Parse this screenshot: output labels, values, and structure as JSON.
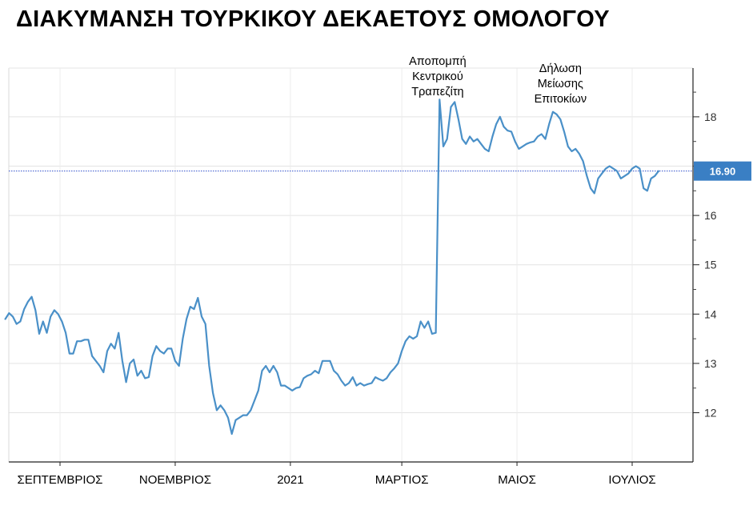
{
  "title": "ΔΙΑΚΥΜΑΝΣΗ ΤΟΥΡΚΙΚΟΥ ΔΕΚΑΕΤΟΥΣ ΟΜΟΛΟΓΟΥ",
  "colors": {
    "line": "#4a90c8",
    "last_badge": "#3a7fc4",
    "reference_line": "#2f4fcc"
  },
  "chart_data": {
    "type": "line",
    "title": "ΔΙΑΚΥΜΑΝΣΗ ΤΟΥΡΚΙΚΟΥ ΔΕΚΑΕΤΟΥΣ ΟΜΟΛΟΓΟΥ",
    "xlabel": "",
    "ylabel": "",
    "ylim": [
      11,
      19
    ],
    "y_ticks": [
      12,
      13,
      14,
      15,
      16,
      18
    ],
    "y_tick_labels": [
      "12",
      "13",
      "14",
      "15",
      "16",
      "18"
    ],
    "x_tick_labels": [
      "ΣΕΠΤΕΜΒΡΙΟΣ",
      "ΝΟΕΜΒΡΙΟΣ",
      "2021",
      "ΜΑΡΤΙΟΣ",
      "ΜΑΙΟΣ",
      "ΙΟΥΛΙΟΣ"
    ],
    "x_tick_dates": [
      "2020-09-01",
      "2020-11-01",
      "2021-01-01",
      "2021-03-01",
      "2021-05-01",
      "2021-07-01"
    ],
    "grid": true,
    "last_value": 16.9,
    "last_value_label": "16.90",
    "annotations": [
      {
        "lines": [
          "Αποπομπή",
          "Κεντρικού",
          "Τραπεζίτη"
        ],
        "date": "2021-03-20"
      },
      {
        "lines": [
          "Δήλωση",
          "Μείωσης",
          "Επιτοκίων"
        ],
        "date": "2021-05-24"
      }
    ],
    "series": [
      {
        "points": [
          [
            "2020-08-03",
            13.9
          ],
          [
            "2020-08-05",
            14.02
          ],
          [
            "2020-08-07",
            13.95
          ],
          [
            "2020-08-09",
            13.8
          ],
          [
            "2020-08-11",
            13.85
          ],
          [
            "2020-08-13",
            14.1
          ],
          [
            "2020-08-15",
            14.25
          ],
          [
            "2020-08-17",
            14.35
          ],
          [
            "2020-08-19",
            14.08
          ],
          [
            "2020-08-21",
            13.6
          ],
          [
            "2020-08-23",
            13.85
          ],
          [
            "2020-08-25",
            13.62
          ],
          [
            "2020-08-27",
            13.95
          ],
          [
            "2020-08-29",
            14.08
          ],
          [
            "2020-08-31",
            14.0
          ],
          [
            "2020-09-02",
            13.85
          ],
          [
            "2020-09-04",
            13.62
          ],
          [
            "2020-09-06",
            13.2
          ],
          [
            "2020-09-08",
            13.2
          ],
          [
            "2020-09-10",
            13.45
          ],
          [
            "2020-09-12",
            13.45
          ],
          [
            "2020-09-14",
            13.48
          ],
          [
            "2020-09-16",
            13.48
          ],
          [
            "2020-09-18",
            13.15
          ],
          [
            "2020-09-20",
            13.05
          ],
          [
            "2020-09-22",
            12.95
          ],
          [
            "2020-09-24",
            12.82
          ],
          [
            "2020-09-26",
            13.25
          ],
          [
            "2020-09-28",
            13.4
          ],
          [
            "2020-09-30",
            13.3
          ],
          [
            "2020-10-02",
            13.62
          ],
          [
            "2020-10-04",
            13.05
          ],
          [
            "2020-10-06",
            12.62
          ],
          [
            "2020-10-08",
            13.0
          ],
          [
            "2020-10-10",
            13.08
          ],
          [
            "2020-10-12",
            12.75
          ],
          [
            "2020-10-14",
            12.85
          ],
          [
            "2020-10-16",
            12.7
          ],
          [
            "2020-10-18",
            12.72
          ],
          [
            "2020-10-20",
            13.15
          ],
          [
            "2020-10-22",
            13.35
          ],
          [
            "2020-10-24",
            13.25
          ],
          [
            "2020-10-26",
            13.2
          ],
          [
            "2020-10-28",
            13.3
          ],
          [
            "2020-10-30",
            13.3
          ],
          [
            "2020-11-01",
            13.05
          ],
          [
            "2020-11-03",
            12.95
          ],
          [
            "2020-11-05",
            13.5
          ],
          [
            "2020-11-07",
            13.9
          ],
          [
            "2020-11-09",
            14.15
          ],
          [
            "2020-11-11",
            14.1
          ],
          [
            "2020-11-13",
            14.33
          ],
          [
            "2020-11-15",
            13.95
          ],
          [
            "2020-11-17",
            13.8
          ],
          [
            "2020-11-19",
            12.95
          ],
          [
            "2020-11-21",
            12.4
          ],
          [
            "2020-11-23",
            12.05
          ],
          [
            "2020-11-25",
            12.15
          ],
          [
            "2020-11-27",
            12.05
          ],
          [
            "2020-11-29",
            11.9
          ],
          [
            "2020-12-01",
            11.57
          ],
          [
            "2020-12-03",
            11.85
          ],
          [
            "2020-12-05",
            11.9
          ],
          [
            "2020-12-07",
            11.95
          ],
          [
            "2020-12-09",
            11.95
          ],
          [
            "2020-12-11",
            12.05
          ],
          [
            "2020-12-13",
            12.25
          ],
          [
            "2020-12-15",
            12.45
          ],
          [
            "2020-12-17",
            12.85
          ],
          [
            "2020-12-19",
            12.95
          ],
          [
            "2020-12-21",
            12.82
          ],
          [
            "2020-12-23",
            12.95
          ],
          [
            "2020-12-25",
            12.82
          ],
          [
            "2020-12-27",
            12.55
          ],
          [
            "2020-12-29",
            12.55
          ],
          [
            "2020-12-31",
            12.5
          ],
          [
            "2021-01-02",
            12.45
          ],
          [
            "2021-01-04",
            12.5
          ],
          [
            "2021-01-06",
            12.52
          ],
          [
            "2021-01-08",
            12.7
          ],
          [
            "2021-01-10",
            12.75
          ],
          [
            "2021-01-12",
            12.78
          ],
          [
            "2021-01-14",
            12.85
          ],
          [
            "2021-01-16",
            12.8
          ],
          [
            "2021-01-18",
            13.05
          ],
          [
            "2021-01-20",
            13.05
          ],
          [
            "2021-01-22",
            13.05
          ],
          [
            "2021-01-24",
            12.85
          ],
          [
            "2021-01-26",
            12.78
          ],
          [
            "2021-01-28",
            12.65
          ],
          [
            "2021-01-30",
            12.55
          ],
          [
            "2021-02-01",
            12.6
          ],
          [
            "2021-02-03",
            12.72
          ],
          [
            "2021-02-05",
            12.55
          ],
          [
            "2021-02-07",
            12.6
          ],
          [
            "2021-02-09",
            12.55
          ],
          [
            "2021-02-11",
            12.58
          ],
          [
            "2021-02-13",
            12.6
          ],
          [
            "2021-02-15",
            12.72
          ],
          [
            "2021-02-17",
            12.68
          ],
          [
            "2021-02-19",
            12.65
          ],
          [
            "2021-02-21",
            12.7
          ],
          [
            "2021-02-23",
            12.82
          ],
          [
            "2021-02-25",
            12.9
          ],
          [
            "2021-02-27",
            13.0
          ],
          [
            "2021-03-01",
            13.25
          ],
          [
            "2021-03-03",
            13.45
          ],
          [
            "2021-03-05",
            13.55
          ],
          [
            "2021-03-07",
            13.5
          ],
          [
            "2021-03-09",
            13.55
          ],
          [
            "2021-03-11",
            13.85
          ],
          [
            "2021-03-13",
            13.72
          ],
          [
            "2021-03-15",
            13.85
          ],
          [
            "2021-03-17",
            13.6
          ],
          [
            "2021-03-19",
            13.62
          ],
          [
            "2021-03-21",
            18.35
          ],
          [
            "2021-03-23",
            17.4
          ],
          [
            "2021-03-25",
            17.55
          ],
          [
            "2021-03-27",
            18.2
          ],
          [
            "2021-03-29",
            18.3
          ],
          [
            "2021-03-31",
            17.95
          ],
          [
            "2021-04-02",
            17.55
          ],
          [
            "2021-04-04",
            17.45
          ],
          [
            "2021-04-06",
            17.6
          ],
          [
            "2021-04-08",
            17.5
          ],
          [
            "2021-04-10",
            17.55
          ],
          [
            "2021-04-12",
            17.45
          ],
          [
            "2021-04-14",
            17.35
          ],
          [
            "2021-04-16",
            17.3
          ],
          [
            "2021-04-18",
            17.6
          ],
          [
            "2021-04-20",
            17.85
          ],
          [
            "2021-04-22",
            18.0
          ],
          [
            "2021-04-24",
            17.8
          ],
          [
            "2021-04-26",
            17.72
          ],
          [
            "2021-04-28",
            17.7
          ],
          [
            "2021-04-30",
            17.5
          ],
          [
            "2021-05-02",
            17.35
          ],
          [
            "2021-05-04",
            17.4
          ],
          [
            "2021-05-06",
            17.45
          ],
          [
            "2021-05-08",
            17.48
          ],
          [
            "2021-05-10",
            17.5
          ],
          [
            "2021-05-12",
            17.6
          ],
          [
            "2021-05-14",
            17.65
          ],
          [
            "2021-05-16",
            17.55
          ],
          [
            "2021-05-18",
            17.85
          ],
          [
            "2021-05-20",
            18.1
          ],
          [
            "2021-05-22",
            18.05
          ],
          [
            "2021-05-24",
            17.95
          ],
          [
            "2021-05-26",
            17.7
          ],
          [
            "2021-05-28",
            17.4
          ],
          [
            "2021-05-30",
            17.3
          ],
          [
            "2021-06-01",
            17.35
          ],
          [
            "2021-06-03",
            17.25
          ],
          [
            "2021-06-05",
            17.1
          ],
          [
            "2021-06-07",
            16.8
          ],
          [
            "2021-06-09",
            16.55
          ],
          [
            "2021-06-11",
            16.45
          ],
          [
            "2021-06-13",
            16.75
          ],
          [
            "2021-06-15",
            16.85
          ],
          [
            "2021-06-17",
            16.95
          ],
          [
            "2021-06-19",
            17.0
          ],
          [
            "2021-06-21",
            16.95
          ],
          [
            "2021-06-23",
            16.9
          ],
          [
            "2021-06-25",
            16.75
          ],
          [
            "2021-06-27",
            16.8
          ],
          [
            "2021-06-29",
            16.85
          ],
          [
            "2021-07-01",
            16.95
          ],
          [
            "2021-07-03",
            17.0
          ],
          [
            "2021-07-05",
            16.95
          ],
          [
            "2021-07-07",
            16.55
          ],
          [
            "2021-07-09",
            16.5
          ],
          [
            "2021-07-11",
            16.75
          ],
          [
            "2021-07-13",
            16.8
          ],
          [
            "2021-07-15",
            16.9
          ]
        ]
      }
    ]
  }
}
